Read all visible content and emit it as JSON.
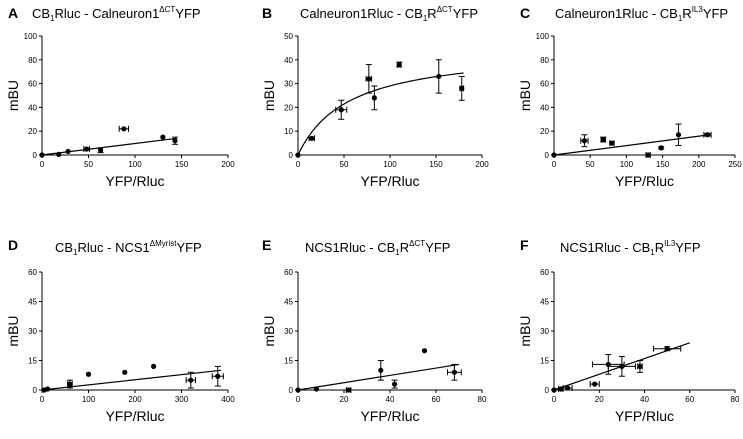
{
  "chart_data": [
    {
      "type": "scatter",
      "panel": "A",
      "title": {
        "pre": "CB",
        "preSub": "1",
        "mid": "Rluc - Calneuron1",
        "sup": "ΔCT",
        "post": "YFP"
      },
      "xlabel": "YFP/Rluc",
      "ylabel": "mBU",
      "xlim": [
        0,
        200
      ],
      "ylim": [
        0,
        100
      ],
      "xticks": [
        0,
        50,
        100,
        150,
        200
      ],
      "yticks": [
        0,
        20,
        40,
        60,
        80,
        100
      ],
      "fit": {
        "kind": "linear",
        "x": [
          0,
          145
        ],
        "y": [
          0,
          14
        ]
      },
      "points": [
        {
          "x": 0,
          "y": 0,
          "xerr": 0,
          "yerr": 0
        },
        {
          "x": 18,
          "y": 0.5,
          "xerr": 0,
          "yerr": 0
        },
        {
          "x": 28,
          "y": 3,
          "xerr": 0,
          "yerr": 0
        },
        {
          "x": 48,
          "y": 5,
          "xerr": 3,
          "yerr": 0
        },
        {
          "x": 63,
          "y": 4,
          "xerr": 0,
          "yerr": 2
        },
        {
          "x": 88,
          "y": 22,
          "xerr": 5,
          "yerr": 0
        },
        {
          "x": 130,
          "y": 15,
          "xerr": 0,
          "yerr": 0
        },
        {
          "x": 143,
          "y": 12,
          "xerr": 0,
          "yerr": 3
        }
      ]
    },
    {
      "type": "scatter",
      "panel": "B",
      "title": {
        "pre": "Calneuron1Rluc - CB",
        "preSub": "1",
        "mid": "R",
        "sup": "ΔCT",
        "post": "YFP"
      },
      "xlabel": "YFP/Rluc",
      "ylabel": "mBU",
      "xlim": [
        0,
        200
      ],
      "ylim": [
        0,
        50
      ],
      "xticks": [
        0,
        50,
        100,
        150,
        200
      ],
      "yticks": [
        0,
        10,
        20,
        30,
        40,
        50
      ],
      "fit": {
        "kind": "hyperbolic",
        "bmax": 45,
        "kd": 55,
        "xmax": 180
      },
      "points": [
        {
          "x": 0,
          "y": 0,
          "xerr": 0,
          "yerr": 0
        },
        {
          "x": 15,
          "y": 7,
          "xerr": 3,
          "yerr": 0
        },
        {
          "x": 47,
          "y": 19,
          "xerr": 6,
          "yerr": 4
        },
        {
          "x": 77,
          "y": 32,
          "xerr": 3,
          "yerr": 6
        },
        {
          "x": 83,
          "y": 24,
          "xerr": 0,
          "yerr": 5
        },
        {
          "x": 110,
          "y": 38,
          "xerr": 2,
          "yerr": 1
        },
        {
          "x": 153,
          "y": 33,
          "xerr": 0,
          "yerr": 7
        },
        {
          "x": 178,
          "y": 28,
          "xerr": 2,
          "yerr": 5
        }
      ]
    },
    {
      "type": "scatter",
      "panel": "C",
      "title": {
        "pre": "Calneuron1Rluc - CB",
        "preSub": "1",
        "mid": "R",
        "sup": "IL3",
        "post": "YFP"
      },
      "xlabel": "YFP/Rluc",
      "ylabel": "mBU",
      "xlim": [
        0,
        250
      ],
      "ylim": [
        0,
        100
      ],
      "xticks": [
        0,
        50,
        100,
        150,
        200,
        250
      ],
      "yticks": [
        0,
        20,
        40,
        60,
        80,
        100
      ],
      "fit": {
        "kind": "linear",
        "x": [
          0,
          215
        ],
        "y": [
          0,
          17
        ]
      },
      "points": [
        {
          "x": 0,
          "y": 0,
          "xerr": 0,
          "yerr": 0
        },
        {
          "x": 42,
          "y": 12,
          "xerr": 5,
          "yerr": 5
        },
        {
          "x": 68,
          "y": 13,
          "xerr": 3,
          "yerr": 2
        },
        {
          "x": 80,
          "y": 10,
          "xerr": 3,
          "yerr": 0
        },
        {
          "x": 130,
          "y": 0,
          "xerr": 3,
          "yerr": 0
        },
        {
          "x": 148,
          "y": 6,
          "xerr": 0,
          "yerr": 1
        },
        {
          "x": 172,
          "y": 17,
          "xerr": 0,
          "yerr": 9
        },
        {
          "x": 212,
          "y": 17,
          "xerr": 5,
          "yerr": 1
        }
      ]
    },
    {
      "type": "scatter",
      "panel": "D",
      "title": {
        "pre": "CB",
        "preSub": "1",
        "mid": "Rluc - NCS1",
        "sup": "ΔMyrist",
        "post": "YFP"
      },
      "xlabel": "YFP/Rluc",
      "ylabel": "mBU",
      "xlim": [
        0,
        400
      ],
      "ylim": [
        0,
        60
      ],
      "xticks": [
        0,
        100,
        200,
        300,
        400
      ],
      "yticks": [
        0,
        15,
        30,
        45,
        60
      ],
      "fit": {
        "kind": "linear",
        "x": [
          0,
          385
        ],
        "y": [
          0,
          10
        ]
      },
      "points": [
        {
          "x": 5,
          "y": 0,
          "xerr": 0,
          "yerr": 0
        },
        {
          "x": 12,
          "y": 0.5,
          "xerr": 0,
          "yerr": 0
        },
        {
          "x": 60,
          "y": 3,
          "xerr": 5,
          "yerr": 2
        },
        {
          "x": 100,
          "y": 8,
          "xerr": 0,
          "yerr": 0
        },
        {
          "x": 178,
          "y": 9,
          "xerr": 0,
          "yerr": 0
        },
        {
          "x": 240,
          "y": 12,
          "xerr": 0,
          "yerr": 0
        },
        {
          "x": 320,
          "y": 5,
          "xerr": 10,
          "yerr": 4
        },
        {
          "x": 378,
          "y": 7,
          "xerr": 12,
          "yerr": 5
        }
      ]
    },
    {
      "type": "scatter",
      "panel": "E",
      "title": {
        "pre": "NCS1Rluc - CB",
        "preSub": "1",
        "mid": "R",
        "sup": "ΔCT",
        "post": "YFP"
      },
      "xlabel": "YFP/Rluc",
      "ylabel": "mBU",
      "xlim": [
        0,
        80
      ],
      "ylim": [
        0,
        60
      ],
      "xticks": [
        0,
        20,
        40,
        60,
        80
      ],
      "yticks": [
        0,
        15,
        30,
        45,
        60
      ],
      "fit": {
        "kind": "linear",
        "x": [
          0,
          70
        ],
        "y": [
          0,
          13
        ]
      },
      "points": [
        {
          "x": 0,
          "y": 0,
          "xerr": 0,
          "yerr": 0
        },
        {
          "x": 8,
          "y": 0.5,
          "xerr": 0,
          "yerr": 0
        },
        {
          "x": 22,
          "y": 0,
          "xerr": 1,
          "yerr": 0
        },
        {
          "x": 36,
          "y": 10,
          "xerr": 0,
          "yerr": 5
        },
        {
          "x": 42,
          "y": 3,
          "xerr": 0,
          "yerr": 2
        },
        {
          "x": 55,
          "y": 20,
          "xerr": 0,
          "yerr": 0
        },
        {
          "x": 68,
          "y": 9,
          "xerr": 3,
          "yerr": 4
        }
      ]
    },
    {
      "type": "scatter",
      "panel": "F",
      "title": {
        "pre": "NCS1Rluc - CB",
        "preSub": "1",
        "mid": "R",
        "sup": "IL3",
        "post": "YFP"
      },
      "xlabel": "YFP/Rluc",
      "ylabel": "mBU",
      "xlim": [
        0,
        80
      ],
      "ylim": [
        0,
        60
      ],
      "xticks": [
        0,
        20,
        40,
        60,
        80
      ],
      "yticks": [
        0,
        15,
        30,
        45,
        60
      ],
      "fit": {
        "kind": "linear",
        "x": [
          0,
          60
        ],
        "y": [
          0,
          24
        ]
      },
      "points": [
        {
          "x": 0,
          "y": 0,
          "xerr": 0,
          "yerr": 0
        },
        {
          "x": 3,
          "y": 0.5,
          "xerr": 1,
          "yerr": 0
        },
        {
          "x": 6,
          "y": 1,
          "xerr": 2,
          "yerr": 0
        },
        {
          "x": 18,
          "y": 3,
          "xerr": 2,
          "yerr": 0
        },
        {
          "x": 24,
          "y": 13,
          "xerr": 7,
          "yerr": 5
        },
        {
          "x": 30,
          "y": 12,
          "xerr": 6,
          "yerr": 5
        },
        {
          "x": 38,
          "y": 12,
          "xerr": 1,
          "yerr": 3
        },
        {
          "x": 50,
          "y": 21,
          "xerr": 6,
          "yerr": 1
        }
      ]
    }
  ]
}
